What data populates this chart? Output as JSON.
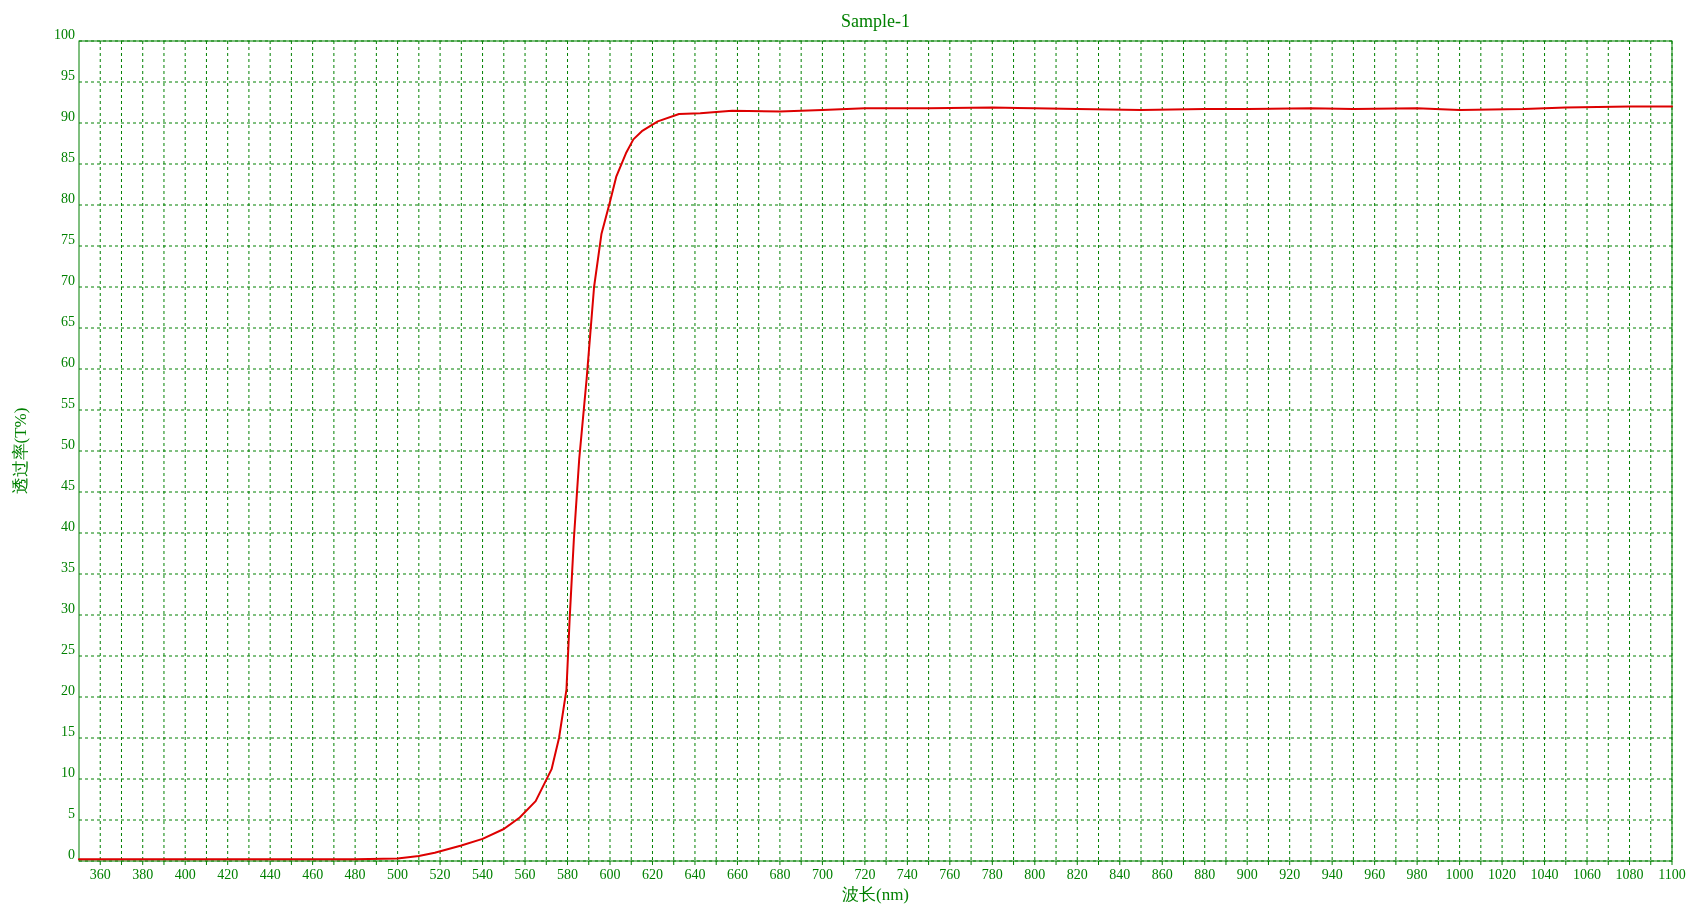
{
  "chart_data": {
    "type": "line",
    "title": "Sample-1",
    "xlabel": "波长(nm)",
    "ylabel": "透过率(T%)",
    "x": [
      350,
      400,
      450,
      480,
      500,
      510,
      517.5,
      530,
      540,
      550,
      557.5,
      565,
      572.5,
      576,
      579.5,
      581,
      583,
      585.5,
      589,
      592.5,
      596,
      600,
      603,
      607.5,
      611,
      615,
      622.5,
      632.5,
      642.5,
      657.5,
      680,
      700,
      720,
      750,
      780,
      800,
      820,
      850,
      880,
      900,
      930,
      950,
      980,
      1000,
      1030,
      1050,
      1080,
      1100
    ],
    "series": [
      {
        "color": "#dd0000",
        "values": [
          0.2,
          0.2,
          0.2,
          0.2,
          0.3,
          0.6,
          1.0,
          1.9,
          2.7,
          3.9,
          5.3,
          7.3,
          11.2,
          15,
          20.9,
          29.5,
          39.3,
          49,
          58.8,
          70,
          76.5,
          80.4,
          83.5,
          86.3,
          88,
          89,
          90.2,
          91.1,
          91.2,
          91.5,
          91.4,
          91.6,
          91.8,
          91.8,
          91.9,
          91.8,
          91.7,
          91.6,
          91.7,
          91.7,
          91.8,
          91.7,
          91.8,
          91.6,
          91.7,
          91.9,
          92.0,
          92.0
        ]
      }
    ],
    "xlim": [
      350,
      1100
    ],
    "xticks": [
      360,
      {
        "value": 370,
        "label": null
      },
      380,
      {
        "value": 390,
        "label": null
      },
      400,
      {
        "value": 410,
        "label": null
      },
      420,
      {
        "value": 430,
        "label": null
      },
      440,
      {
        "value": 450,
        "label": null
      },
      460,
      {
        "value": 470,
        "label": null
      },
      480,
      {
        "value": 490,
        "label": null
      },
      500,
      {
        "value": 510,
        "label": null
      },
      520,
      {
        "value": 530,
        "label": null
      },
      540,
      {
        "value": 550,
        "label": null
      },
      560,
      {
        "value": 570,
        "label": null
      },
      580,
      {
        "value": 590,
        "label": null
      },
      600,
      {
        "value": 610,
        "label": null
      },
      620,
      {
        "value": 630,
        "label": null
      },
      640,
      {
        "value": 650,
        "label": null
      },
      660,
      {
        "value": 670,
        "label": null
      },
      680,
      {
        "value": 690,
        "label": null
      },
      700,
      {
        "value": 710,
        "label": null
      },
      720,
      {
        "value": 730,
        "label": null
      },
      740,
      {
        "value": 750,
        "label": null
      },
      760,
      {
        "value": 770,
        "label": null
      },
      780,
      {
        "value": 790,
        "label": null
      },
      800,
      {
        "value": 810,
        "label": null
      },
      820,
      {
        "value": 830,
        "label": null
      },
      840,
      {
        "value": 850,
        "label": null
      },
      860,
      {
        "value": 870,
        "label": null
      },
      880,
      {
        "value": 890,
        "label": null
      },
      900,
      {
        "value": 910,
        "label": null
      },
      920,
      {
        "value": 930,
        "label": null
      },
      940,
      {
        "value": 950,
        "label": null
      },
      960,
      {
        "value": 970,
        "label": null
      },
      980,
      {
        "value": 990,
        "label": null
      },
      1000,
      {
        "value": 1010,
        "label": null
      },
      1020,
      {
        "value": 1030,
        "label": null
      },
      1040,
      {
        "value": 1050,
        "label": null
      },
      1060,
      {
        "value": 1070,
        "label": null
      },
      1080,
      {
        "value": 1090,
        "label": null
      },
      1100
    ],
    "ylim": [
      0,
      100
    ],
    "yticks": [
      0,
      5,
      10,
      15,
      20,
      25,
      30,
      35,
      40,
      45,
      50,
      55,
      60,
      65,
      70,
      75,
      80,
      85,
      90,
      95,
      100
    ],
    "grid": true,
    "marker": "none",
    "line_style": "solid"
  }
}
